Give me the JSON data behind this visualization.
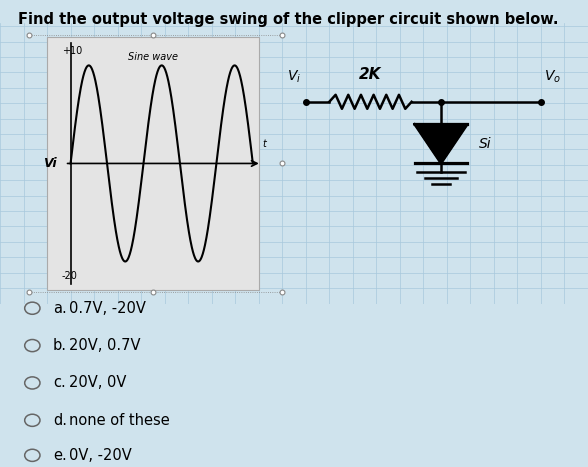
{
  "title": "Find the output voltage swing of the clipper circuit shown below.",
  "title_fontsize": 10.5,
  "bg_color": "#cfe3ed",
  "grid_color": "#a8c8dc",
  "options": [
    {
      "label": "a.",
      "text": "0.7V, -20V"
    },
    {
      "label": "b.",
      "text": "20V, 0.7V"
    },
    {
      "label": "c.",
      "text": "20V, 0V"
    },
    {
      "label": "d.",
      "text": "none of these"
    },
    {
      "label": "e.",
      "text": "0V, -20V"
    }
  ],
  "sine_box_bg": "#e4e4e4",
  "sine_box_border": "#aaaaaa",
  "wave_label": "Sine wave",
  "vi_label": "Vi",
  "plus10": "+10",
  "minus20": "-20",
  "time_label": "t",
  "resistor_label": "2K",
  "diode_label": "Si",
  "vi2_label": "Vi",
  "vo_label": "Vo"
}
